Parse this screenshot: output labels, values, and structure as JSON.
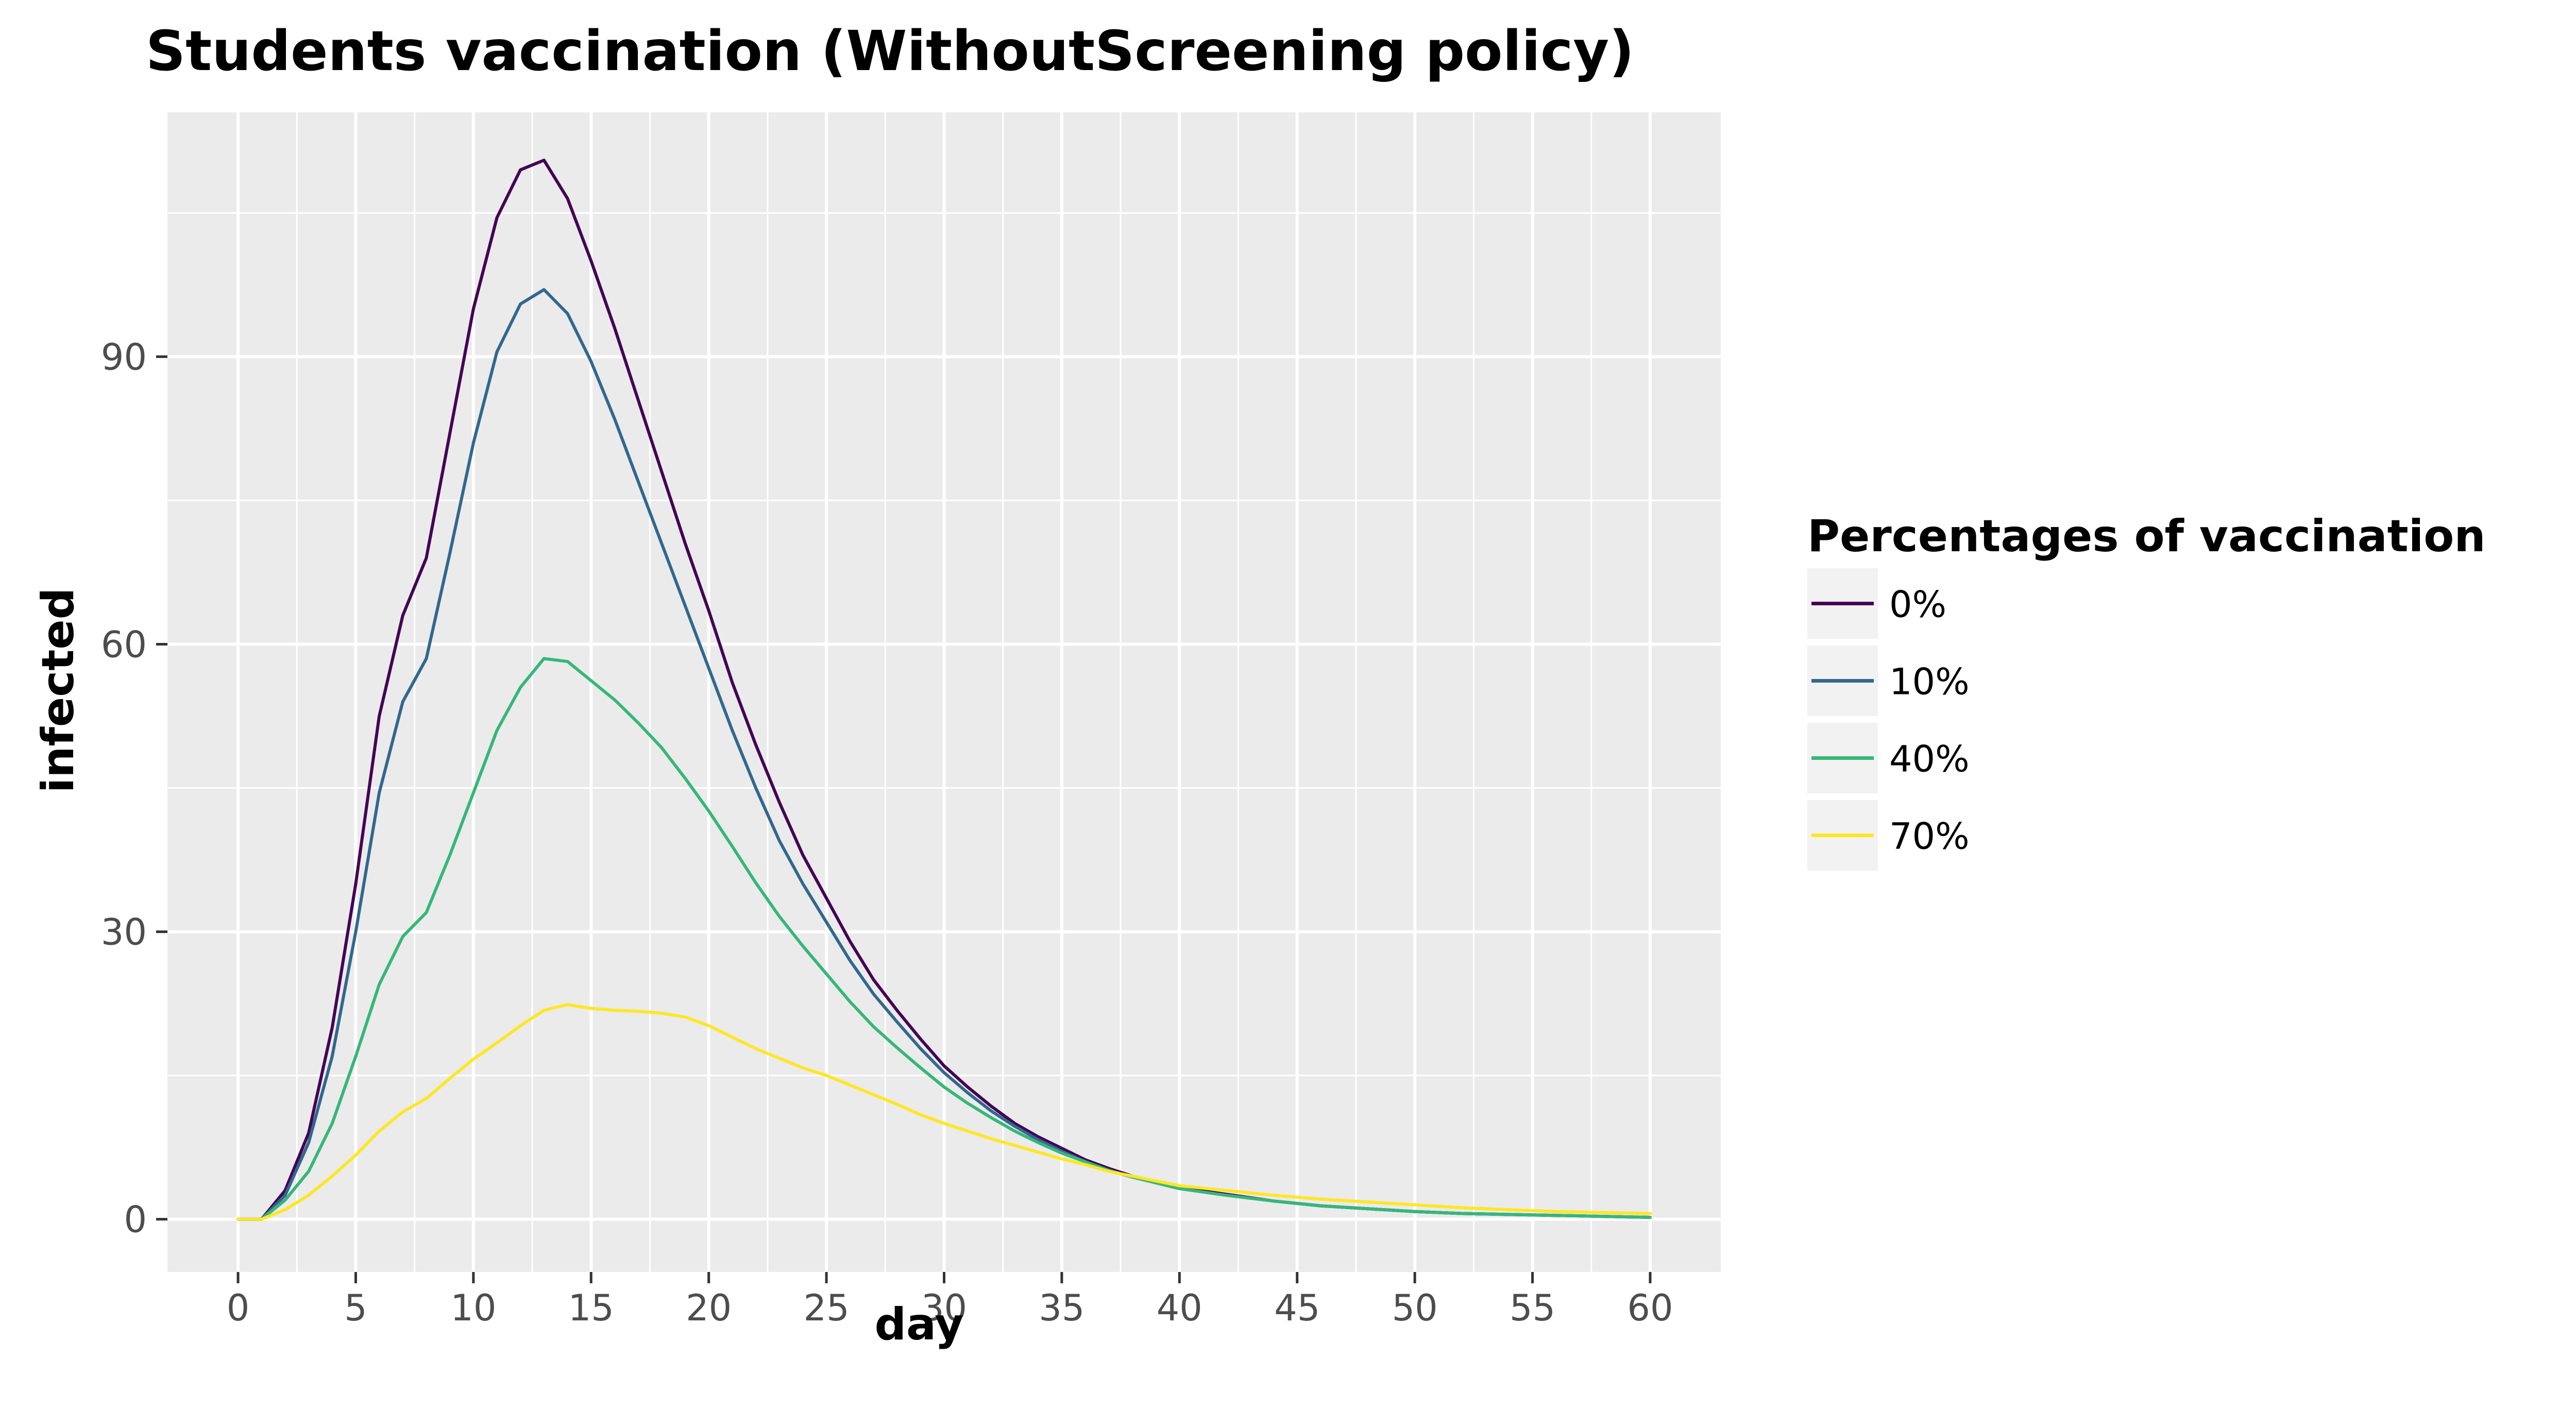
{
  "chart_data": {
    "type": "line",
    "title": "Students vaccination (WithoutScreening policy)",
    "xlabel": "day",
    "ylabel": "infected",
    "xlim": [
      -3,
      63
    ],
    "ylim": [
      -5.5,
      115.5
    ],
    "x_ticks": [
      0,
      5,
      10,
      15,
      20,
      25,
      30,
      35,
      40,
      45,
      50,
      55,
      60
    ],
    "y_ticks": [
      0,
      30,
      60,
      90
    ],
    "grid": true,
    "legend": {
      "title": "Percentages of vaccination",
      "placement": "right"
    },
    "series": [
      {
        "name": "0%",
        "color": "#440154",
        "x": [
          0,
          1,
          2,
          3,
          4,
          5,
          6,
          7,
          8,
          9,
          10,
          11,
          12,
          13,
          14,
          15,
          16,
          17,
          18,
          19,
          20,
          21,
          22,
          23,
          24,
          25,
          26,
          27,
          28,
          29,
          30,
          31,
          32,
          33,
          34,
          35,
          36,
          37,
          38,
          39,
          40,
          42,
          44,
          46,
          48,
          50,
          52,
          54,
          56,
          58,
          60
        ],
        "values": [
          0,
          0,
          3,
          9,
          20,
          35,
          52.5,
          63,
          69,
          82,
          95,
          104.5,
          109.5,
          110.5,
          106.5,
          100,
          93,
          85.5,
          78,
          70.5,
          63.5,
          56,
          49.5,
          43.5,
          38,
          33.5,
          29,
          25,
          21.8,
          18.8,
          16,
          13.8,
          11.8,
          10,
          8.6,
          7.4,
          6.2,
          5.3,
          4.5,
          3.9,
          3.3,
          2.6,
          1.9,
          1.4,
          1.1,
          0.8,
          0.6,
          0.5,
          0.4,
          0.3,
          0.2
        ]
      },
      {
        "name": "10%",
        "color": "#31688e",
        "x": [
          0,
          1,
          2,
          3,
          4,
          5,
          6,
          7,
          8,
          9,
          10,
          11,
          12,
          13,
          14,
          15,
          16,
          17,
          18,
          19,
          20,
          21,
          22,
          23,
          24,
          25,
          26,
          27,
          28,
          29,
          30,
          31,
          32,
          33,
          34,
          35,
          36,
          37,
          38,
          39,
          40,
          42,
          44,
          46,
          48,
          50,
          52,
          54,
          56,
          58,
          60
        ],
        "values": [
          0,
          0,
          2.5,
          8,
          17,
          30,
          44.5,
          54,
          58.5,
          69.5,
          81,
          90.5,
          95.5,
          97,
          94.5,
          89.5,
          83.5,
          77,
          70.5,
          64,
          57.5,
          51,
          45,
          39.5,
          35,
          31,
          27,
          23.5,
          20.6,
          17.8,
          15.3,
          13.2,
          11.3,
          9.7,
          8.3,
          7.1,
          6,
          5.1,
          4.4,
          3.8,
          3.2,
          2.5,
          1.9,
          1.4,
          1.1,
          0.8,
          0.6,
          0.5,
          0.4,
          0.3,
          0.2
        ]
      },
      {
        "name": "40%",
        "color": "#35b779",
        "x": [
          0,
          1,
          2,
          3,
          4,
          5,
          6,
          7,
          8,
          9,
          10,
          11,
          12,
          13,
          14,
          15,
          16,
          17,
          18,
          19,
          20,
          21,
          22,
          23,
          24,
          25,
          26,
          27,
          28,
          29,
          30,
          31,
          32,
          33,
          34,
          35,
          36,
          37,
          38,
          39,
          40,
          42,
          44,
          46,
          48,
          50,
          52,
          54,
          56,
          58,
          60
        ],
        "values": [
          0,
          0,
          2,
          5,
          10,
          17,
          24.5,
          29.5,
          32,
          38,
          44.5,
          51,
          55.5,
          58.5,
          58.2,
          56.2,
          54.2,
          51.8,
          49.2,
          46,
          42.6,
          38.9,
          35.1,
          31.6,
          28.5,
          25.6,
          22.7,
          20.1,
          17.9,
          15.8,
          13.8,
          12.1,
          10.6,
          9.2,
          8,
          6.9,
          6,
          5.1,
          4.4,
          3.8,
          3.2,
          2.5,
          1.9,
          1.4,
          1.1,
          0.8,
          0.6,
          0.5,
          0.4,
          0.3,
          0.2
        ]
      },
      {
        "name": "70%",
        "color": "#fde725",
        "x": [
          0,
          1,
          2,
          3,
          4,
          5,
          6,
          7,
          8,
          9,
          10,
          11,
          12,
          13,
          14,
          15,
          16,
          17,
          18,
          19,
          20,
          21,
          22,
          23,
          24,
          25,
          26,
          27,
          28,
          29,
          30,
          31,
          32,
          33,
          34,
          35,
          36,
          37,
          38,
          39,
          40,
          42,
          44,
          46,
          48,
          50,
          52,
          54,
          56,
          58,
          60
        ],
        "values": [
          0,
          0,
          1,
          2.5,
          4.5,
          6.7,
          9.2,
          11.2,
          12.6,
          14.7,
          16.7,
          18.4,
          20.2,
          21.8,
          22.4,
          22,
          21.8,
          21.7,
          21.5,
          21.1,
          20.2,
          19,
          17.8,
          16.8,
          15.8,
          15,
          14,
          13,
          12,
          10.9,
          10,
          9.2,
          8.4,
          7.7,
          7,
          6.3,
          5.7,
          5,
          4.5,
          4,
          3.5,
          3,
          2.5,
          2.1,
          1.8,
          1.5,
          1.2,
          1,
          0.8,
          0.7,
          0.6
        ]
      }
    ]
  }
}
